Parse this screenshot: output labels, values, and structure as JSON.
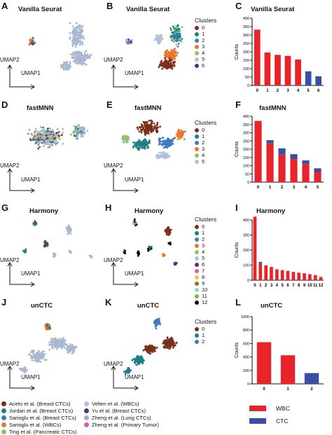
{
  "colors": {
    "wbc": "#e8232a",
    "ctc": "#3a4ea3",
    "grey": "#a9b8d0",
    "cluster_palette": [
      "#7a2f1b",
      "#1f7f86",
      "#3b7bbf",
      "#e9762b",
      "#8ec26b",
      "#b1c0d6",
      "#5b2a86"
    ]
  },
  "umap": {
    "y_label": "UMAP2",
    "x_label": "UMAP1"
  },
  "panels": [
    {
      "letter": "A",
      "title": "Vanilla Seurat"
    },
    {
      "letter": "B",
      "title": "Vanilla Seurat"
    },
    {
      "letter": "C",
      "title": "Vanilla Seurat"
    },
    {
      "letter": "D",
      "title": "fastMNN"
    },
    {
      "letter": "E",
      "title": "fastMNN"
    },
    {
      "letter": "F",
      "title": "fastMNN"
    },
    {
      "letter": "G",
      "title": "Harmony"
    },
    {
      "letter": "H",
      "title": "Harmony"
    },
    {
      "letter": "I",
      "title": "Harmony"
    },
    {
      "letter": "J",
      "title": "unCTC"
    },
    {
      "letter": "K",
      "title": "unCTC"
    },
    {
      "letter": "L",
      "title": "unCTC"
    }
  ],
  "cluster_legends": [
    {
      "title": "Clusters",
      "items": [
        "0",
        "1",
        "2",
        "3",
        "4",
        "5",
        "6"
      ],
      "colors": [
        "#7a2f1b",
        "#1f7f86",
        "#3b7bbf",
        "#e9762b",
        "#8ec26b",
        "#b1c0d6",
        "#5b2a86"
      ]
    },
    {
      "title": "Clusters",
      "items": [
        "0",
        "1",
        "2",
        "3",
        "4",
        "5"
      ],
      "colors": [
        "#7a2f1b",
        "#1f7f86",
        "#3b7bbf",
        "#e9762b",
        "#8ec26b",
        "#b1c0d6"
      ]
    },
    {
      "title": "Clusters",
      "items": [
        "0",
        "1",
        "2",
        "3",
        "4",
        "5",
        "6",
        "7",
        "8",
        "9",
        "10",
        "11",
        "12"
      ],
      "colors": [
        "#7a2f1b",
        "#1f7f86",
        "#3b7bbf",
        "#e9762b",
        "#8ec26b",
        "#b1c0d6",
        "#5b2a86",
        "#e85aa0",
        "#f2c230",
        "#8c6d3f",
        "#8fd6d6",
        "#6bbf3a",
        "#111111"
      ]
    },
    {
      "title": "Clusters",
      "items": [
        "0",
        "1",
        "2"
      ],
      "colors": [
        "#7a2f1b",
        "#1f7f86",
        "#3b7bbf"
      ]
    }
  ],
  "chart_data": [
    {
      "type": "bar",
      "title": "Vanilla Seurat",
      "ylabel": "Counts",
      "xlabel": "",
      "categories": [
        "0",
        "1",
        "2",
        "3",
        "4",
        "5",
        "6"
      ],
      "ylim": [
        0,
        400
      ],
      "yticks": [
        0,
        50,
        100,
        150,
        200,
        250,
        300,
        350,
        400
      ],
      "series": [
        {
          "name": "WBC",
          "values": [
            332,
            196,
            182,
            176,
            154,
            0,
            0
          ]
        },
        {
          "name": "CTC",
          "values": [
            0,
            0,
            0,
            0,
            0,
            84,
            54
          ]
        }
      ]
    },
    {
      "type": "bar",
      "title": "fastMNN",
      "ylabel": "Counts",
      "xlabel": "",
      "categories": [
        "0",
        "1",
        "2",
        "3",
        "4",
        "5"
      ],
      "ylim": [
        0,
        400
      ],
      "yticks": [
        0,
        50,
        100,
        150,
        200,
        250,
        300,
        350,
        400
      ],
      "series": [
        {
          "name": "WBC",
          "values": [
            372,
            235,
            167,
            140,
            110,
            62
          ]
        },
        {
          "name": "CTC",
          "values": [
            0,
            20,
            38,
            30,
            22,
            22
          ]
        }
      ]
    },
    {
      "type": "bar",
      "title": "Harmony",
      "ylabel": "Counts",
      "xlabel": "",
      "categories": [
        "0",
        "1",
        "2",
        "3",
        "4",
        "5",
        "6",
        "7",
        "8",
        "9",
        "10",
        "11",
        "12"
      ],
      "ylim": [
        0,
        400
      ],
      "yticks": [
        0,
        100,
        200,
        300,
        400
      ],
      "series": [
        {
          "name": "WBC",
          "values": [
            422,
            108,
            98,
            88,
            72,
            67,
            62,
            55,
            50,
            46,
            40,
            34,
            22
          ]
        },
        {
          "name": "CTC",
          "values": [
            0,
            14,
            0,
            0,
            0,
            0,
            0,
            0,
            0,
            0,
            0,
            0,
            0
          ]
        }
      ]
    },
    {
      "type": "bar",
      "title": "unCTC",
      "ylabel": "Counts",
      "xlabel": "",
      "categories": [
        "0",
        "1",
        "2"
      ],
      "ylim": [
        0,
        1000
      ],
      "yticks": [
        0,
        200,
        400,
        600,
        800,
        1000
      ],
      "series": [
        {
          "name": "WBC",
          "values": [
            620,
            425,
            0
          ]
        },
        {
          "name": "CTC",
          "values": [
            0,
            0,
            160
          ]
        }
      ]
    }
  ],
  "bottom_legend": [
    {
      "label": "Aceto et al. (Breast CTCs)",
      "color": "#7a2f1b"
    },
    {
      "label": "Jordan et al. (Breast CTCs)",
      "color": "#1f7f86"
    },
    {
      "label": "Sarioglu et al. (Breast CTCs)",
      "color": "#3b7bbf"
    },
    {
      "label": "Sarioglu et al. (WBCs)",
      "color": "#e9762b"
    },
    {
      "label": "Ting et al. (Pancreatic CTCs)",
      "color": "#8ec26b"
    },
    {
      "label": "Velten et al. (WBCs)",
      "color": "#b1c0d6"
    },
    {
      "label": "Yu et al. (Breast CTCs)",
      "color": "#5b2a86"
    },
    {
      "label": "Zheng et al. (Lung CTCs)",
      "color": "#a7a9d6"
    },
    {
      "label": "Zheng et al. (Primary Tumor)",
      "color": "#e85aa0"
    }
  ],
  "status_legend": [
    {
      "label": "WBC",
      "color": "#e8232a"
    },
    {
      "label": "CTC",
      "color": "#3a4ea3"
    }
  ]
}
